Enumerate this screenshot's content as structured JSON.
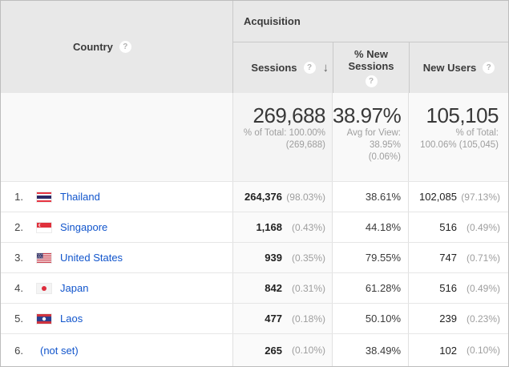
{
  "colors": {
    "header_bg": "#e8e8e8",
    "link_blue": "#1155cc",
    "text_muted": "#9e9e9e",
    "summary_bg": "#f9f9f9"
  },
  "icons": {
    "help": "?",
    "sort_descending": "↓"
  },
  "header": {
    "country_label": "Country",
    "acquisition_label": "Acquisition",
    "sessions_label": "Sessions",
    "new_sessions_label": "% New Sessions",
    "new_users_label": "New Users"
  },
  "summary": {
    "sessions_value": "269,688",
    "sessions_detail_1": "% of Total: 100.00%",
    "sessions_detail_2": "(269,688)",
    "new_sessions_value": "38.97%",
    "new_sessions_detail_1": "Avg for View:",
    "new_sessions_detail_2": "38.95%",
    "new_sessions_detail_3": "(0.06%)",
    "new_users_value": "105,105",
    "new_users_detail_1": "% of Total:",
    "new_users_detail_2": "100.06% (105,045)"
  },
  "rows": [
    {
      "rank": "1.",
      "country": "Thailand",
      "flag": "thailand",
      "sessions": "264,376",
      "sessions_pct": "(98.03%)",
      "new_sessions": "38.61%",
      "new_users": "102,085",
      "new_users_pct": "(97.13%)"
    },
    {
      "rank": "2.",
      "country": "Singapore",
      "flag": "singapore",
      "sessions": "1,168",
      "sessions_pct": "(0.43%)",
      "new_sessions": "44.18%",
      "new_users": "516",
      "new_users_pct": "(0.49%)"
    },
    {
      "rank": "3.",
      "country": "United States",
      "flag": "usa",
      "sessions": "939",
      "sessions_pct": "(0.35%)",
      "new_sessions": "79.55%",
      "new_users": "747",
      "new_users_pct": "(0.71%)"
    },
    {
      "rank": "4.",
      "country": "Japan",
      "flag": "japan",
      "sessions": "842",
      "sessions_pct": "(0.31%)",
      "new_sessions": "61.28%",
      "new_users": "516",
      "new_users_pct": "(0.49%)"
    },
    {
      "rank": "5.",
      "country": "Laos",
      "flag": "laos",
      "sessions": "477",
      "sessions_pct": "(0.18%)",
      "new_sessions": "50.10%",
      "new_users": "239",
      "new_users_pct": "(0.23%)"
    },
    {
      "rank": "6.",
      "country": "(not set)",
      "flag": "none",
      "sessions": "265",
      "sessions_pct": "(0.10%)",
      "new_sessions": "38.49%",
      "new_users": "102",
      "new_users_pct": "(0.10%)"
    }
  ]
}
